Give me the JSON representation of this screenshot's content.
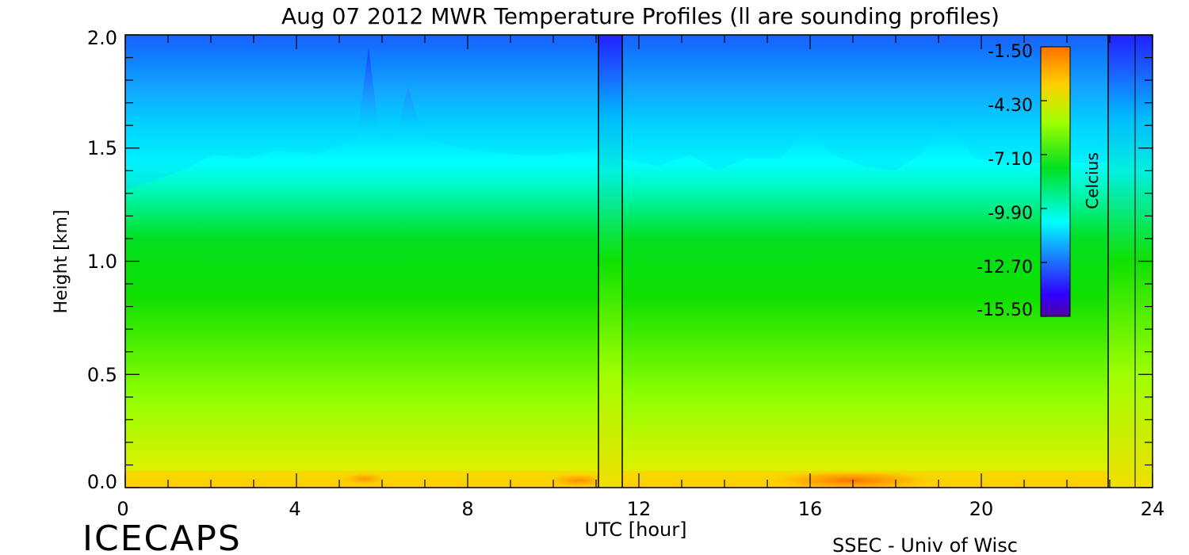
{
  "chart_data": {
    "type": "heatmap",
    "title": "Aug 07 2012 MWR Temperature Profiles (ll are sounding profiles)",
    "xlabel": "UTC [hour]",
    "ylabel": "Height [km]",
    "xlim": [
      0,
      24
    ],
    "ylim": [
      0,
      2.0
    ],
    "x_ticks": [
      "0",
      "4",
      "8",
      "12",
      "16",
      "20",
      "24"
    ],
    "y_ticks": [
      "0.0",
      "0.5",
      "1.0",
      "1.5",
      "2.0"
    ],
    "colorbar": {
      "label": "Celcius",
      "range": [
        -15.5,
        -1.5
      ],
      "ticks": [
        "-1.50",
        "-4.30",
        "-7.10",
        "-9.90",
        "-12.70",
        "-15.50"
      ]
    },
    "sounding_profiles_utc": [
      11.1,
      11.6,
      23.0,
      23.5
    ],
    "colors": {
      "warmest": "#ff7000",
      "warm": "#ffd000",
      "mid_warm": "#a0ff00",
      "mid": "#00e000",
      "cool": "#00ffff",
      "cold": "#1870ff",
      "coldest": "#3000ff",
      "bottom": "#4000a0"
    }
  },
  "footer": {
    "left": "ICECAPS",
    "right": "SSEC - Univ of Wisc"
  }
}
